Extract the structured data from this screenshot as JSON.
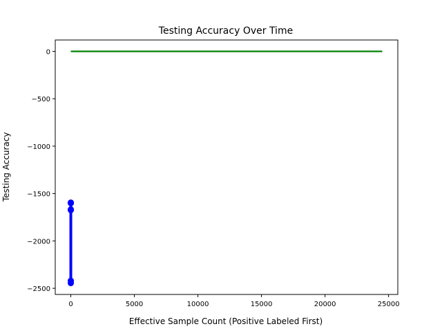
{
  "chart_data": {
    "type": "line",
    "title": "Testing Accuracy Over Time",
    "xlabel": "Effective Sample Count (Positive Labeled First)",
    "ylabel": "Testing Accuracy",
    "xlim": [
      -1225,
      25725
    ],
    "ylim": [
      -2565,
      120
    ],
    "x_ticks": [
      0,
      5000,
      10000,
      15000,
      20000,
      25000
    ],
    "y_ticks": [
      0,
      -500,
      -1000,
      -1500,
      -2000,
      -2500
    ],
    "grid": false,
    "legend": "none",
    "series": [
      {
        "color": "#0000ff",
        "marker": "circle",
        "x": [
          0,
          0,
          0,
          0,
          0,
          0
        ],
        "y": [
          -1595,
          -1602,
          -1668,
          -1675,
          -2420,
          -2445
        ]
      },
      {
        "color": "#008000",
        "marker": "none",
        "x": [
          0,
          24500
        ],
        "y": [
          0,
          0
        ]
      }
    ]
  }
}
